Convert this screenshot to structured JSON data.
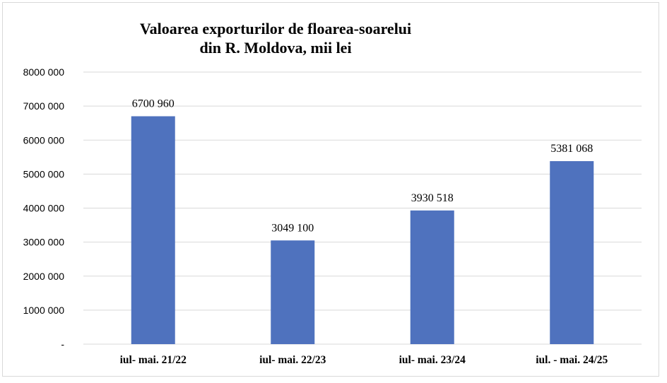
{
  "chart_data": {
    "type": "bar",
    "title_lines": [
      "Valoarea exporturilor de floarea-soarelui",
      "din R. Moldova, mii lei"
    ],
    "categories": [
      "iul- mai. 21/22",
      "iul- mai. 22/23",
      "iul- mai. 23/24",
      "iul. - mai. 24/25"
    ],
    "values": [
      6700960,
      3049100,
      3930518,
      5381068
    ],
    "data_labels": [
      "6700 960",
      "3049 100",
      "3930 518",
      "5381 068"
    ],
    "ylim": [
      0,
      8000000
    ],
    "yticks": [
      0,
      1000000,
      2000000,
      3000000,
      4000000,
      5000000,
      6000000,
      7000000,
      8000000
    ],
    "ytick_labels": [
      "-",
      "1000 000",
      "2000 000",
      "3000 000",
      "4000 000",
      "5000 000",
      "6000 000",
      "7000 000",
      "8000 000"
    ],
    "grid": true,
    "bar_color": "#4f72be",
    "grid_color": "#d9d9d9"
  }
}
